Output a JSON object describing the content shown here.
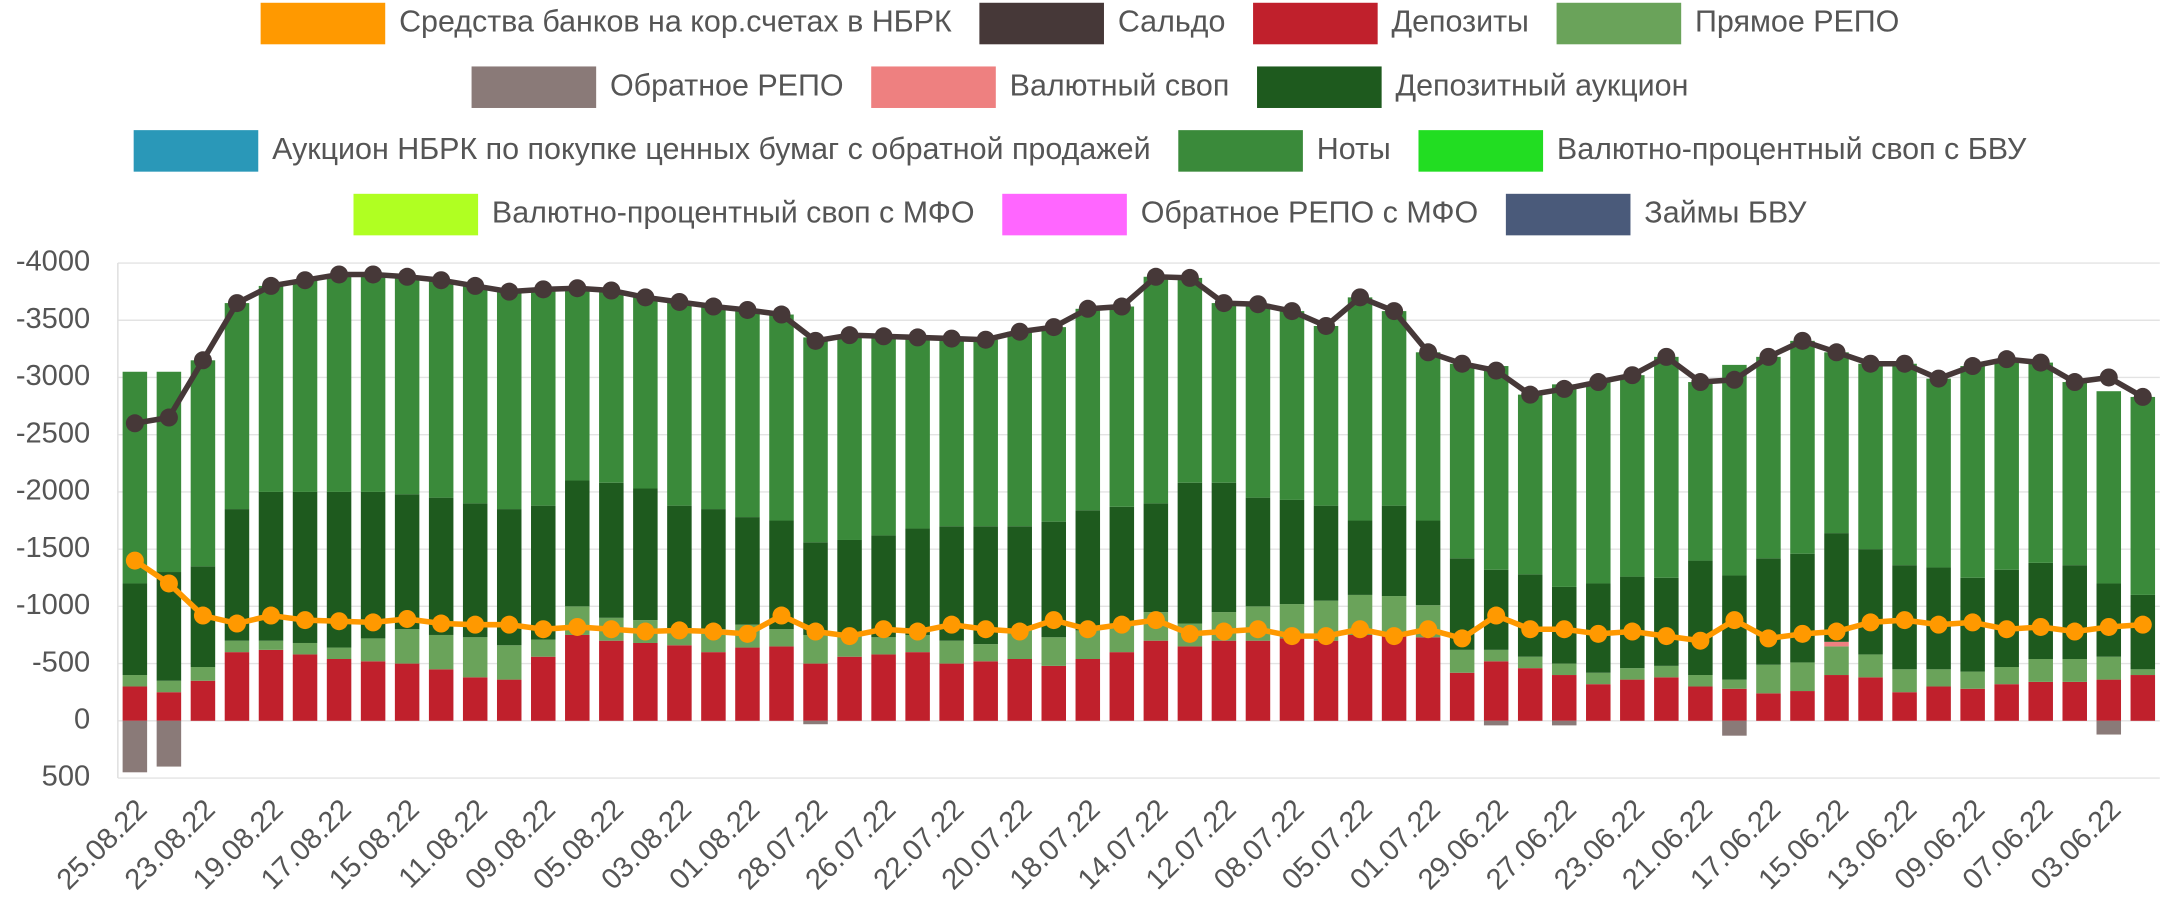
{
  "chart_data": {
    "type": "bar",
    "categories": [
      "25.08.22",
      null,
      "23.08.22",
      null,
      "19.08.22",
      null,
      "17.08.22",
      null,
      "15.08.22",
      null,
      "11.08.22",
      null,
      "09.08.22",
      null,
      "05.08.22",
      null,
      "03.08.22",
      null,
      "01.08.22",
      null,
      "28.07.22",
      null,
      "26.07.22",
      null,
      "22.07.22",
      null,
      "20.07.22",
      null,
      "18.07.22",
      null,
      "14.07.22",
      null,
      "12.07.22",
      null,
      "08.07.22",
      null,
      "05.07.22",
      null,
      "01.07.22",
      null,
      "29.06.22",
      null,
      "27.06.22",
      null,
      "23.06.22",
      null,
      "21.06.22",
      null,
      "17.06.22",
      null,
      "15.06.22",
      null,
      "13.06.22",
      null,
      "09.06.22",
      null,
      "07.06.22",
      null,
      "03.06.22",
      null
    ],
    "ylim": [
      500,
      -4000
    ],
    "yticks": [
      -4000,
      -3500,
      -3000,
      -2500,
      -2000,
      -1500,
      -1000,
      -500,
      0,
      500
    ],
    "grid": true,
    "legend": "top",
    "series": [
      {
        "name": "Средства банков на кор.счетах в НБРК",
        "type": "line",
        "color": "#ff9900",
        "values": [
          -1400,
          -1200,
          -920,
          -850,
          -920,
          -880,
          -870,
          -860,
          -890,
          -850,
          -840,
          -840,
          -800,
          -820,
          -800,
          -780,
          -790,
          -780,
          -760,
          -920,
          -780,
          -740,
          -800,
          -780,
          -840,
          -800,
          -780,
          -880,
          -800,
          -840,
          -880,
          -760,
          -780,
          -800,
          -740,
          -740,
          -800,
          -740,
          -800,
          -720,
          -920,
          -800,
          -800,
          -760,
          -780,
          -740,
          -700,
          -880,
          -720,
          -760,
          -780,
          -860,
          -880,
          -840,
          -860,
          -800,
          -820,
          -780,
          -820,
          -840
        ]
      },
      {
        "name": "Сальдо",
        "type": "line",
        "color": "#463838",
        "values": [
          -2600,
          -2650,
          -3150,
          -3650,
          -3800,
          -3850,
          -3900,
          -3900,
          -3880,
          -3850,
          -3800,
          -3750,
          -3770,
          -3780,
          -3760,
          -3700,
          -3660,
          -3620,
          -3590,
          -3550,
          -3320,
          -3370,
          -3360,
          -3350,
          -3340,
          -3330,
          -3400,
          -3440,
          -3600,
          -3620,
          -3880,
          -3870,
          -3650,
          -3640,
          -3580,
          -3450,
          -3700,
          -3580,
          -3220,
          -3120,
          -3060,
          -2850,
          -2900,
          -2960,
          -3020,
          -3180,
          -2960,
          -2980,
          -3180,
          -3320,
          -3220,
          -3120,
          -3120,
          -2990,
          -3100,
          -3160,
          -3130,
          -2960,
          -3000,
          -2830
        ]
      },
      {
        "name": "Депозиты",
        "type": "bar",
        "color": "#c0202c",
        "values": [
          -300,
          -250,
          -350,
          -600,
          -620,
          -580,
          -540,
          -520,
          -500,
          -450,
          -380,
          -360,
          -560,
          -750,
          -700,
          -680,
          -660,
          -600,
          -640,
          -650,
          -500,
          -560,
          -580,
          -600,
          -500,
          -520,
          -540,
          -480,
          -540,
          -600,
          -700,
          -650,
          -700,
          -700,
          -720,
          -700,
          -750,
          -740,
          -730,
          -420,
          -520,
          -460,
          -400,
          -320,
          -360,
          -380,
          -300,
          -280,
          -240,
          -260,
          -400,
          -380,
          -250,
          -300,
          -280,
          -320,
          -340,
          -340,
          -360,
          -400
        ]
      },
      {
        "name": "Прямое РЕПО",
        "type": "bar",
        "color": "#6aa35a",
        "values": [
          -100,
          -100,
          -120,
          -100,
          -80,
          -100,
          -100,
          -200,
          -300,
          -300,
          -350,
          -300,
          -150,
          -250,
          -200,
          -200,
          -150,
          -200,
          -200,
          -150,
          -250,
          -200,
          -150,
          -150,
          -200,
          -150,
          -250,
          -250,
          -250,
          -250,
          -250,
          -200,
          -250,
          -300,
          -300,
          -350,
          -350,
          -350,
          -280,
          -200,
          -100,
          -100,
          -100,
          -100,
          -100,
          -100,
          -100,
          -80,
          -250,
          -250,
          -250,
          -200,
          -200,
          -150,
          -150,
          -150,
          -200,
          -200,
          -200,
          -50
        ]
      },
      {
        "name": "Обратное РЕПО",
        "type": "bar",
        "color": "#8a7a78",
        "values": [
          450,
          400,
          0,
          0,
          0,
          0,
          0,
          0,
          0,
          0,
          0,
          0,
          0,
          0,
          0,
          0,
          0,
          0,
          0,
          0,
          30,
          0,
          0,
          0,
          0,
          0,
          0,
          0,
          0,
          0,
          0,
          0,
          0,
          0,
          0,
          0,
          0,
          0,
          0,
          0,
          40,
          0,
          40,
          0,
          0,
          0,
          0,
          130,
          0,
          0,
          0,
          0,
          0,
          0,
          0,
          0,
          0,
          0,
          120,
          0
        ]
      },
      {
        "name": "Валютный своп",
        "type": "bar",
        "color": "#ee8080",
        "values": [
          0,
          0,
          0,
          0,
          0,
          0,
          0,
          0,
          0,
          0,
          0,
          0,
          0,
          0,
          0,
          0,
          0,
          0,
          0,
          0,
          0,
          0,
          0,
          0,
          0,
          0,
          0,
          0,
          0,
          0,
          0,
          0,
          0,
          0,
          0,
          0,
          0,
          0,
          0,
          0,
          0,
          0,
          0,
          0,
          0,
          0,
          0,
          0,
          0,
          0,
          -40,
          0,
          0,
          0,
          0,
          0,
          0,
          0,
          0,
          0
        ]
      },
      {
        "name": "Депозитный аукцион",
        "type": "bar",
        "color": "#1e5a1e",
        "values": [
          -800,
          -950,
          -880,
          -1150,
          -1300,
          -1320,
          -1360,
          -1280,
          -1180,
          -1200,
          -1170,
          -1190,
          -1170,
          -1100,
          -1180,
          -1150,
          -1070,
          -1050,
          -940,
          -950,
          -810,
          -820,
          -890,
          -930,
          -1000,
          -1030,
          -910,
          -1010,
          -1050,
          -1020,
          -950,
          -1230,
          -1130,
          -950,
          -910,
          -830,
          -650,
          -790,
          -740,
          -800,
          -700,
          -720,
          -670,
          -780,
          -800,
          -770,
          -1000,
          -910,
          -930,
          -950,
          -950,
          -920,
          -910,
          -890,
          -820,
          -850,
          -840,
          -820,
          -640,
          -650
        ]
      },
      {
        "name": "Аукцион НБРК по покупке ценных бумаг с обратной продажей",
        "type": "bar",
        "color": "#2a98b8",
        "values": [
          0,
          0,
          0,
          0,
          0,
          0,
          0,
          0,
          0,
          0,
          0,
          0,
          0,
          0,
          0,
          0,
          0,
          0,
          0,
          0,
          0,
          0,
          0,
          0,
          0,
          0,
          0,
          0,
          0,
          0,
          0,
          0,
          0,
          0,
          0,
          0,
          0,
          0,
          0,
          0,
          0,
          0,
          0,
          0,
          0,
          0,
          0,
          0,
          0,
          0,
          0,
          0,
          0,
          0,
          0,
          0,
          0,
          0,
          0,
          0
        ]
      },
      {
        "name": "Ноты",
        "type": "bar",
        "color": "#3a8a3a",
        "values": [
          -1850,
          -1750,
          -1800,
          -1800,
          -1800,
          -1850,
          -1900,
          -1900,
          -1900,
          -1900,
          -1900,
          -1900,
          -1890,
          -1680,
          -1680,
          -1670,
          -1780,
          -1770,
          -1810,
          -1800,
          -1790,
          -1790,
          -1740,
          -1670,
          -1640,
          -1630,
          -1700,
          -1700,
          -1760,
          -1750,
          -1980,
          -1790,
          -1570,
          -1690,
          -1650,
          -1570,
          -1950,
          -1700,
          -1470,
          -1700,
          -1780,
          -1570,
          -1770,
          -1760,
          -1760,
          -1930,
          -1560,
          -1840,
          -1760,
          -1860,
          -1580,
          -1620,
          -1760,
          -1650,
          -1850,
          -1840,
          -1750,
          -1600,
          -1680,
          -1730
        ]
      },
      {
        "name": "Валютно-процентный своп с БВУ",
        "type": "bar",
        "color": "#22dd22",
        "values": [
          0,
          0,
          0,
          0,
          0,
          0,
          0,
          0,
          0,
          0,
          0,
          0,
          0,
          0,
          0,
          0,
          0,
          0,
          0,
          0,
          0,
          0,
          0,
          0,
          0,
          0,
          0,
          0,
          0,
          0,
          0,
          0,
          0,
          0,
          0,
          0,
          0,
          0,
          0,
          0,
          0,
          0,
          0,
          0,
          0,
          0,
          0,
          0,
          0,
          0,
          0,
          0,
          0,
          0,
          0,
          0,
          0,
          0,
          0,
          0
        ]
      },
      {
        "name": "Валютно-процентный своп с МФО",
        "type": "bar",
        "color": "#b0ff22",
        "values": [
          0,
          0,
          0,
          0,
          0,
          0,
          0,
          0,
          0,
          0,
          0,
          0,
          0,
          0,
          0,
          0,
          0,
          0,
          0,
          0,
          0,
          0,
          0,
          0,
          0,
          0,
          0,
          0,
          0,
          0,
          0,
          0,
          0,
          0,
          0,
          0,
          0,
          0,
          0,
          0,
          0,
          0,
          0,
          0,
          0,
          0,
          0,
          0,
          0,
          0,
          0,
          0,
          0,
          0,
          0,
          0,
          0,
          0,
          0,
          0
        ]
      },
      {
        "name": "Обратное РЕПО с МФО",
        "type": "bar",
        "color": "#ff66ff",
        "values": [
          0,
          0,
          0,
          0,
          0,
          0,
          0,
          0,
          0,
          0,
          0,
          0,
          0,
          0,
          0,
          0,
          0,
          0,
          0,
          0,
          0,
          0,
          0,
          0,
          0,
          0,
          0,
          0,
          0,
          0,
          0,
          0,
          0,
          0,
          0,
          0,
          0,
          0,
          0,
          0,
          0,
          0,
          0,
          0,
          0,
          0,
          0,
          0,
          0,
          0,
          0,
          0,
          0,
          0,
          0,
          0,
          0,
          0,
          0,
          0
        ]
      },
      {
        "name": "Займы БВУ",
        "type": "bar",
        "color": "#4a5a7a",
        "values": [
          0,
          0,
          0,
          0,
          0,
          0,
          0,
          0,
          0,
          0,
          0,
          0,
          0,
          0,
          0,
          0,
          0,
          0,
          0,
          0,
          0,
          0,
          0,
          0,
          0,
          0,
          0,
          0,
          0,
          0,
          0,
          0,
          0,
          0,
          0,
          0,
          0,
          0,
          0,
          0,
          0,
          0,
          0,
          0,
          0,
          0,
          0,
          0,
          0,
          0,
          0,
          0,
          0,
          0,
          0,
          0,
          0,
          0,
          0,
          0
        ]
      }
    ]
  }
}
